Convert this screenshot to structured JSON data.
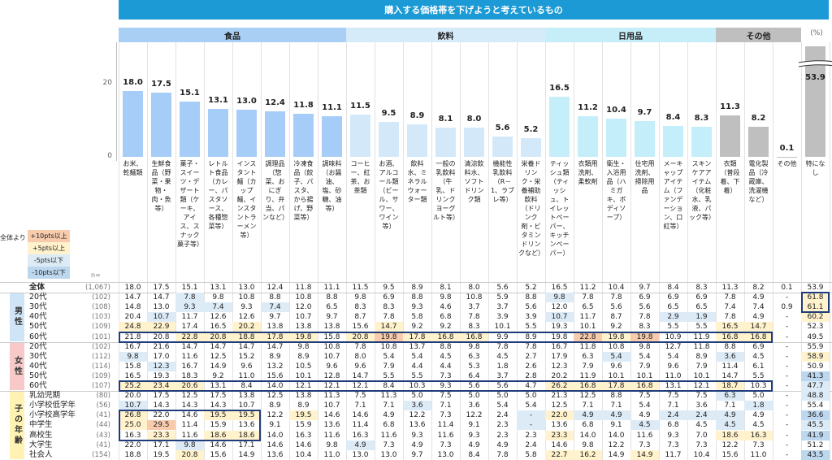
{
  "title": "購入する価格帯を下げようと考えているもの",
  "unit_label": "(%)",
  "n_label": "n=",
  "legend": {
    "lead": "全体より",
    "items": [
      {
        "label": "+10pts以上",
        "color": "#f8cbad"
      },
      {
        "label": "+5pts以上",
        "color": "#fff2cc"
      },
      {
        "label": "-5pts以下",
        "color": "#ddebf7"
      },
      {
        "label": "-10pts以下",
        "color": "#bdd7ee"
      }
    ]
  },
  "groups": [
    {
      "label": "食品",
      "count": 8,
      "header_color": "#a9cff5",
      "bar_color": "#a6cdf7"
    },
    {
      "label": "飲料",
      "count": 7,
      "header_color": "#d6ebfa",
      "bar_color": "#d3e9f9"
    },
    {
      "label": "日用品",
      "count": 6,
      "header_color": "#c6eef9",
      "bar_color": "#c4eefa"
    },
    {
      "label": "その他",
      "count": 3,
      "header_color": "#bfbfbf",
      "bar_color": "#bfbfbf"
    },
    {
      "label": "",
      "count": 1,
      "header_color": "#ffffff",
      "bar_color": "#bfbfbf"
    }
  ],
  "chart_data": {
    "type": "bar",
    "title": "購入する価格帯を下げようと考えているもの",
    "ylabel": "(%)",
    "yticks": [
      "20",
      "0"
    ],
    "ylim": [
      0,
      30
    ],
    "axis_break_on": "特になし",
    "categories": [
      "お米、乾麺類",
      "生鮮食品（野菜・果物・肉・魚等）",
      "菓子・スイーツ・デザート類（ケーキ、アイス、スナック菓子等）",
      "レトルト食品（カレー、パスタソース、各種惣菜等）",
      "インスタント麺（カップ麺、インスタントラーメン等）",
      "調理品（惣菜、おにぎり、弁当、パンなど）",
      "冷凍食品（餃子、パスタ、から揚げ、野菜等）",
      "調味料（お醤油、塩、砂糖、油等）",
      "コーヒー、紅茶、お茶類",
      "お酒、アルコール類（ビール、サワー、ワイン等）",
      "飲料水、ミネラルウォーター類",
      "一般の乳飲料（牛乳、ドリンクヨーグルト等）",
      "清涼飲料水、ソフトドリンク類",
      "機能性乳飲料（R－1、ラブレ等）",
      "栄養ドリンク・栄養補助飲料（ドリンク剤・ビタミンドリンクなど）",
      "ティッシュ類（ティッシュ、トイレットペーパー、キッチンペーパー）",
      "衣類用洗剤、柔軟剤",
      "衛生・入浴用品（ハミガキ、ボディソープ）",
      "住宅用洗剤、掃除用品",
      "メーキャップアイテム（ファンデーション、口紅等）",
      "スキンケアアイテム（化粧水、乳液、パック等）",
      "衣類（普段着、下着）",
      "電化製品（冷蔵庫、洗濯機など）",
      "その他",
      "特になし"
    ],
    "values": [
      18.0,
      17.5,
      15.1,
      13.1,
      13.0,
      12.4,
      11.8,
      11.1,
      11.5,
      9.5,
      8.9,
      8.1,
      8.0,
      5.6,
      5.2,
      16.5,
      11.2,
      10.4,
      9.7,
      8.4,
      8.3,
      11.3,
      8.2,
      0.1,
      53.9
    ],
    "value_labels": [
      "18.0",
      "17.5",
      "15.1",
      "13.1",
      "13.0",
      "12.4",
      "11.8",
      "11.1",
      "11.5",
      "9.5",
      "8.9",
      "8.1",
      "8.0",
      "5.6",
      "5.2",
      "16.5",
      "11.2",
      "10.4",
      "9.7",
      "8.4",
      "8.3",
      "11.3",
      "8.2",
      "0.1",
      "53.9"
    ]
  },
  "table": {
    "total": {
      "label": "全体",
      "n": "(1,067)",
      "values": [
        "18.0",
        "17.5",
        "15.1",
        "13.1",
        "13.0",
        "12.4",
        "11.8",
        "11.1",
        "11.5",
        "9.5",
        "8.9",
        "8.1",
        "8.0",
        "5.6",
        "5.2",
        "16.5",
        "11.2",
        "10.4",
        "9.7",
        "8.4",
        "8.3",
        "11.3",
        "8.2",
        "0.1",
        "53.9"
      ]
    },
    "sections": [
      {
        "label": "男性",
        "color": "#cfe5f7",
        "rows": [
          {
            "label": "20代",
            "n": "(102)",
            "values": [
              "14.7",
              "14.7",
              "7.8",
              "9.8",
              "10.8",
              "8.8",
              "10.8",
              "8.8",
              "9.8",
              "6.9",
              "8.8",
              "9.8",
              "10.8",
              "5.9",
              "8.8",
              "9.8",
              "7.8",
              "7.8",
              "6.9",
              "6.9",
              "6.9",
              "7.8",
              "4.9",
              "-",
              "61.8"
            ]
          },
          {
            "label": "30代",
            "n": "(108)",
            "values": [
              "14.8",
              "13.0",
              "9.3",
              "7.4",
              "9.3",
              "7.4",
              "12.0",
              "6.5",
              "8.3",
              "8.3",
              "9.3",
              "4.6",
              "3.7",
              "3.7",
              "5.6",
              "12.0",
              "6.5",
              "5.6",
              "5.6",
              "6.5",
              "6.5",
              "7.4",
              "7.4",
              "0.9",
              "61.1"
            ]
          },
          {
            "label": "40代",
            "n": "(103)",
            "values": [
              "20.4",
              "10.7",
              "11.7",
              "12.6",
              "12.6",
              "9.7",
              "10.7",
              "9.7",
              "8.7",
              "7.8",
              "5.8",
              "6.8",
              "7.8",
              "3.9",
              "3.9",
              "10.7",
              "11.7",
              "8.7",
              "7.8",
              "2.9",
              "1.9",
              "7.8",
              "4.9",
              "-",
              "60.2"
            ]
          },
          {
            "label": "50代",
            "n": "(109)",
            "values": [
              "24.8",
              "22.9",
              "17.4",
              "16.5",
              "20.2",
              "13.8",
              "13.8",
              "13.8",
              "15.6",
              "14.7",
              "9.2",
              "9.2",
              "8.3",
              "10.1",
              "5.5",
              "19.3",
              "10.1",
              "9.2",
              "8.3",
              "5.5",
              "5.5",
              "16.5",
              "14.7",
              "-",
              "52.3"
            ]
          },
          {
            "label": "60代",
            "n": "(101)",
            "values": [
              "21.8",
              "20.8",
              "22.8",
              "20.8",
              "18.8",
              "17.8",
              "19.8",
              "15.8",
              "20.8",
              "19.8",
              "17.8",
              "16.8",
              "16.8",
              "9.9",
              "8.9",
              "19.8",
              "22.8",
              "19.8",
              "19.8",
              "10.9",
              "11.9",
              "16.8",
              "16.8",
              "-",
              "49.5"
            ]
          }
        ]
      },
      {
        "label": "女性",
        "color": "#f7c9c9",
        "rows": [
          {
            "label": "20代",
            "n": "(102)",
            "values": [
              "16.7",
              "21.6",
              "14.7",
              "14.7",
              "14.7",
              "14.7",
              "9.8",
              "10.8",
              "7.8",
              "10.8",
              "13.7",
              "8.8",
              "9.8",
              "7.8",
              "7.8",
              "16.7",
              "11.8",
              "10.8",
              "9.8",
              "12.7",
              "11.8",
              "8.8",
              "6.9",
              "-",
              "55.9"
            ]
          },
          {
            "label": "30代",
            "n": "(112)",
            "values": [
              "9.8",
              "17.0",
              "11.6",
              "12.5",
              "15.2",
              "8.9",
              "8.9",
              "10.7",
              "8.0",
              "5.4",
              "5.4",
              "4.5",
              "6.3",
              "4.5",
              "2.7",
              "17.9",
              "6.3",
              "5.4",
              "5.4",
              "5.4",
              "8.9",
              "3.6",
              "4.5",
              "-",
              "58.9"
            ]
          },
          {
            "label": "40代",
            "n": "(114)",
            "values": [
              "15.8",
              "12.3",
              "16.7",
              "14.9",
              "9.6",
              "13.2",
              "10.5",
              "9.6",
              "9.6",
              "7.9",
              "4.4",
              "4.4",
              "5.3",
              "1.8",
              "2.6",
              "12.3",
              "7.9",
              "9.6",
              "7.9",
              "9.6",
              "7.9",
              "11.4",
              "6.1",
              "-",
              "50.9"
            ]
          },
          {
            "label": "50代",
            "n": "(109)",
            "values": [
              "16.5",
              "19.3",
              "18.3",
              "9.2",
              "11.0",
              "15.6",
              "10.1",
              "12.8",
              "14.7",
              "5.5",
              "5.5",
              "7.3",
              "6.4",
              "3.7",
              "2.8",
              "20.2",
              "11.9",
              "10.1",
              "10.1",
              "11.0",
              "10.1",
              "14.7",
              "5.5",
              "-",
              "41.3"
            ]
          },
          {
            "label": "60代",
            "n": "(107)",
            "values": [
              "25.2",
              "23.4",
              "20.6",
              "13.1",
              "8.4",
              "14.0",
              "12.1",
              "12.1",
              "12.1",
              "8.4",
              "10.3",
              "9.3",
              "5.6",
              "5.6",
              "4.7",
              "26.2",
              "16.8",
              "17.8",
              "16.8",
              "13.1",
              "12.1",
              "18.7",
              "10.3",
              "-",
              "47.7"
            ]
          }
        ]
      },
      {
        "label": "子の年齢",
        "color": "#fff2b3",
        "rows": [
          {
            "label": "乳幼児期",
            "n": "(80)",
            "values": [
              "20.0",
              "17.5",
              "12.5",
              "17.5",
              "13.8",
              "12.5",
              "13.8",
              "11.3",
              "7.5",
              "11.3",
              "5.0",
              "7.5",
              "5.0",
              "5.0",
              "5.0",
              "21.3",
              "12.5",
              "8.8",
              "7.5",
              "7.5",
              "7.5",
              "6.3",
              "5.0",
              "-",
              "48.8"
            ]
          },
          {
            "label": "小学校低学年",
            "n": "(56)",
            "values": [
              "10.7",
              "14.3",
              "14.3",
              "14.3",
              "10.7",
              "8.9",
              "8.9",
              "10.7",
              "7.1",
              "7.1",
              "3.6",
              "7.1",
              "3.6",
              "5.4",
              "5.4",
              "12.5",
              "7.1",
              "7.1",
              "5.4",
              "7.1",
              "3.6",
              "7.1",
              "1.8",
              "-",
              "55.4"
            ]
          },
          {
            "label": "小学校高学年",
            "n": "(41)",
            "values": [
              "26.8",
              "22.0",
              "14.6",
              "19.5",
              "19.5",
              "12.2",
              "19.5",
              "14.6",
              "14.6",
              "4.9",
              "12.2",
              "7.3",
              "12.2",
              "2.4",
              "-",
              "22.0",
              "4.9",
              "4.9",
              "4.9",
              "2.4",
              "2.4",
              "4.9",
              "4.9",
              "-",
              "36.6"
            ]
          },
          {
            "label": "中学生",
            "n": "(44)",
            "values": [
              "25.0",
              "29.5",
              "11.4",
              "15.9",
              "13.6",
              "9.1",
              "15.9",
              "13.6",
              "11.4",
              "6.8",
              "13.6",
              "11.4",
              "9.1",
              "2.3",
              "-",
              "13.6",
              "6.8",
              "9.1",
              "4.5",
              "6.8",
              "4.5",
              "4.5",
              "4.5",
              "-",
              "45.5"
            ]
          },
          {
            "label": "高校生",
            "n": "(43)",
            "values": [
              "16.3",
              "23.3",
              "11.6",
              "18.6",
              "18.6",
              "14.0",
              "16.3",
              "11.6",
              "16.3",
              "11.6",
              "9.3",
              "11.6",
              "9.3",
              "2.3",
              "2.3",
              "23.3",
              "14.0",
              "14.0",
              "11.6",
              "9.3",
              "7.0",
              "18.6",
              "16.3",
              "-",
              "41.9"
            ]
          },
          {
            "label": "大学生",
            "n": "(41)",
            "values": [
              "22.0",
              "17.1",
              "9.8",
              "14.6",
              "17.1",
              "14.6",
              "14.6",
              "9.8",
              "4.9",
              "7.3",
              "4.9",
              "7.3",
              "4.9",
              "4.9",
              "2.4",
              "14.6",
              "9.8",
              "12.2",
              "7.3",
              "7.3",
              "7.3",
              "12.2",
              "7.3",
              "-",
              "51.2"
            ]
          },
          {
            "label": "社会人",
            "n": "(154)",
            "values": [
              "18.8",
              "19.5",
              "20.8",
              "15.6",
              "14.9",
              "13.6",
              "10.4",
              "11.0",
              "13.0",
              "13.0",
              "9.7",
              "13.0",
              "8.4",
              "7.8",
              "5.8",
              "22.7",
              "16.2",
              "14.9",
              "14.9",
              "11.7",
              "10.4",
              "15.6",
              "11.0",
              "-",
              "43.5"
            ]
          }
        ]
      }
    ]
  }
}
